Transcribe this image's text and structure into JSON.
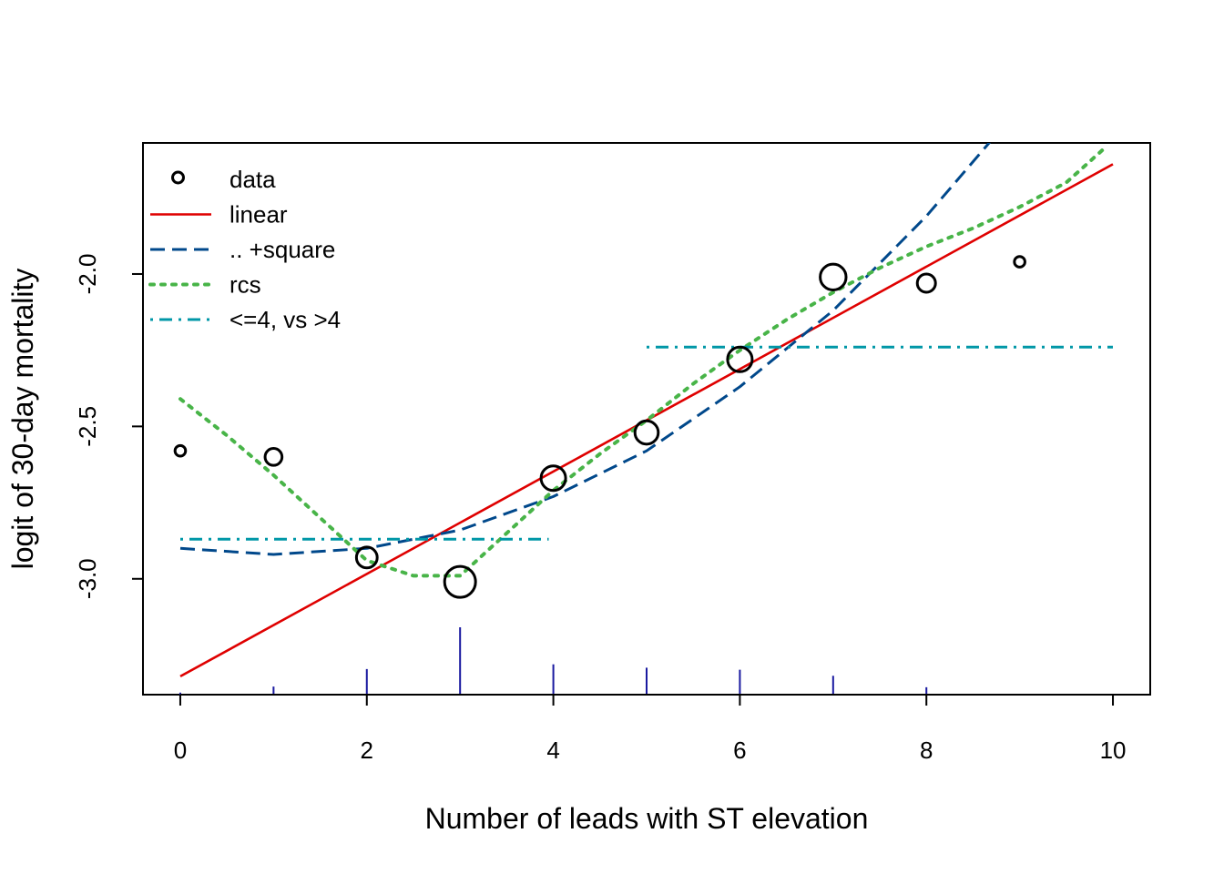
{
  "chart_data": {
    "type": "line",
    "title": "",
    "xlabel": "Number of leads with ST elevation",
    "ylabel": "logit of 30-day mortality",
    "xlim": [
      -0.4,
      10.4
    ],
    "ylim": [
      -3.38,
      -1.57
    ],
    "x_ticks": [
      0,
      2,
      4,
      6,
      8,
      10
    ],
    "x_tick_labels": [
      "0",
      "2",
      "4",
      "6",
      "8",
      "10"
    ],
    "y_ticks": [
      -3.0,
      -2.5,
      -2.0
    ],
    "y_tick_labels": [
      "-3.0",
      "-2.5",
      "-2.0"
    ],
    "legend_position": "top-left",
    "points": {
      "name": "data",
      "color": "#000000",
      "x": [
        0,
        1,
        2,
        3,
        4,
        5,
        6,
        7,
        8,
        9
      ],
      "y": [
        -2.58,
        -2.6,
        -2.93,
        -3.01,
        -2.67,
        -2.52,
        -2.28,
        -2.01,
        -2.03,
        -1.96
      ],
      "relative_size": [
        0.2,
        0.45,
        0.6,
        1.0,
        0.75,
        0.7,
        0.75,
        0.8,
        0.5,
        0.2
      ]
    },
    "series": [
      {
        "name": "linear",
        "color": "#df0000",
        "dash": "solid",
        "x": [
          0,
          10
        ],
        "y": [
          -3.32,
          -1.64
        ]
      },
      {
        "name": ".. +square",
        "color": "#00488b",
        "dash": "dashed",
        "x": [
          0,
          1,
          2,
          3,
          4,
          5,
          6,
          7,
          8,
          8.7
        ],
        "y": [
          -2.9,
          -2.92,
          -2.9,
          -2.84,
          -2.73,
          -2.58,
          -2.37,
          -2.12,
          -1.81,
          -1.56
        ]
      },
      {
        "name": "rcs",
        "color": "#48b448",
        "dash": "dotted",
        "x": [
          0,
          0.5,
          1,
          1.5,
          2,
          2.5,
          3,
          3.5,
          4,
          4.5,
          5,
          5.5,
          6,
          6.5,
          7,
          7.5,
          8,
          8.5,
          9,
          9.5,
          9.9
        ],
        "y": [
          -2.41,
          -2.53,
          -2.66,
          -2.8,
          -2.94,
          -2.99,
          -2.99,
          -2.85,
          -2.71,
          -2.59,
          -2.48,
          -2.36,
          -2.25,
          -2.15,
          -2.06,
          -1.98,
          -1.91,
          -1.85,
          -1.78,
          -1.7,
          -1.59
        ]
      },
      {
        "name": "<=4, vs >4",
        "color": "#0097a7",
        "dash": "dotdash",
        "segments": [
          {
            "x": [
              0,
              3.95
            ],
            "y": [
              -2.87,
              -2.87
            ]
          },
          {
            "x": [
              5,
              10
            ],
            "y": [
              -2.24,
              -2.24
            ]
          }
        ]
      }
    ],
    "rug": {
      "color": "#1a1aa0",
      "x": [
        0,
        1,
        2,
        3,
        4,
        5,
        6,
        7,
        8,
        9
      ],
      "relative_height": [
        0.03,
        0.12,
        0.38,
        1.0,
        0.45,
        0.4,
        0.37,
        0.28,
        0.11,
        0.01
      ]
    }
  }
}
